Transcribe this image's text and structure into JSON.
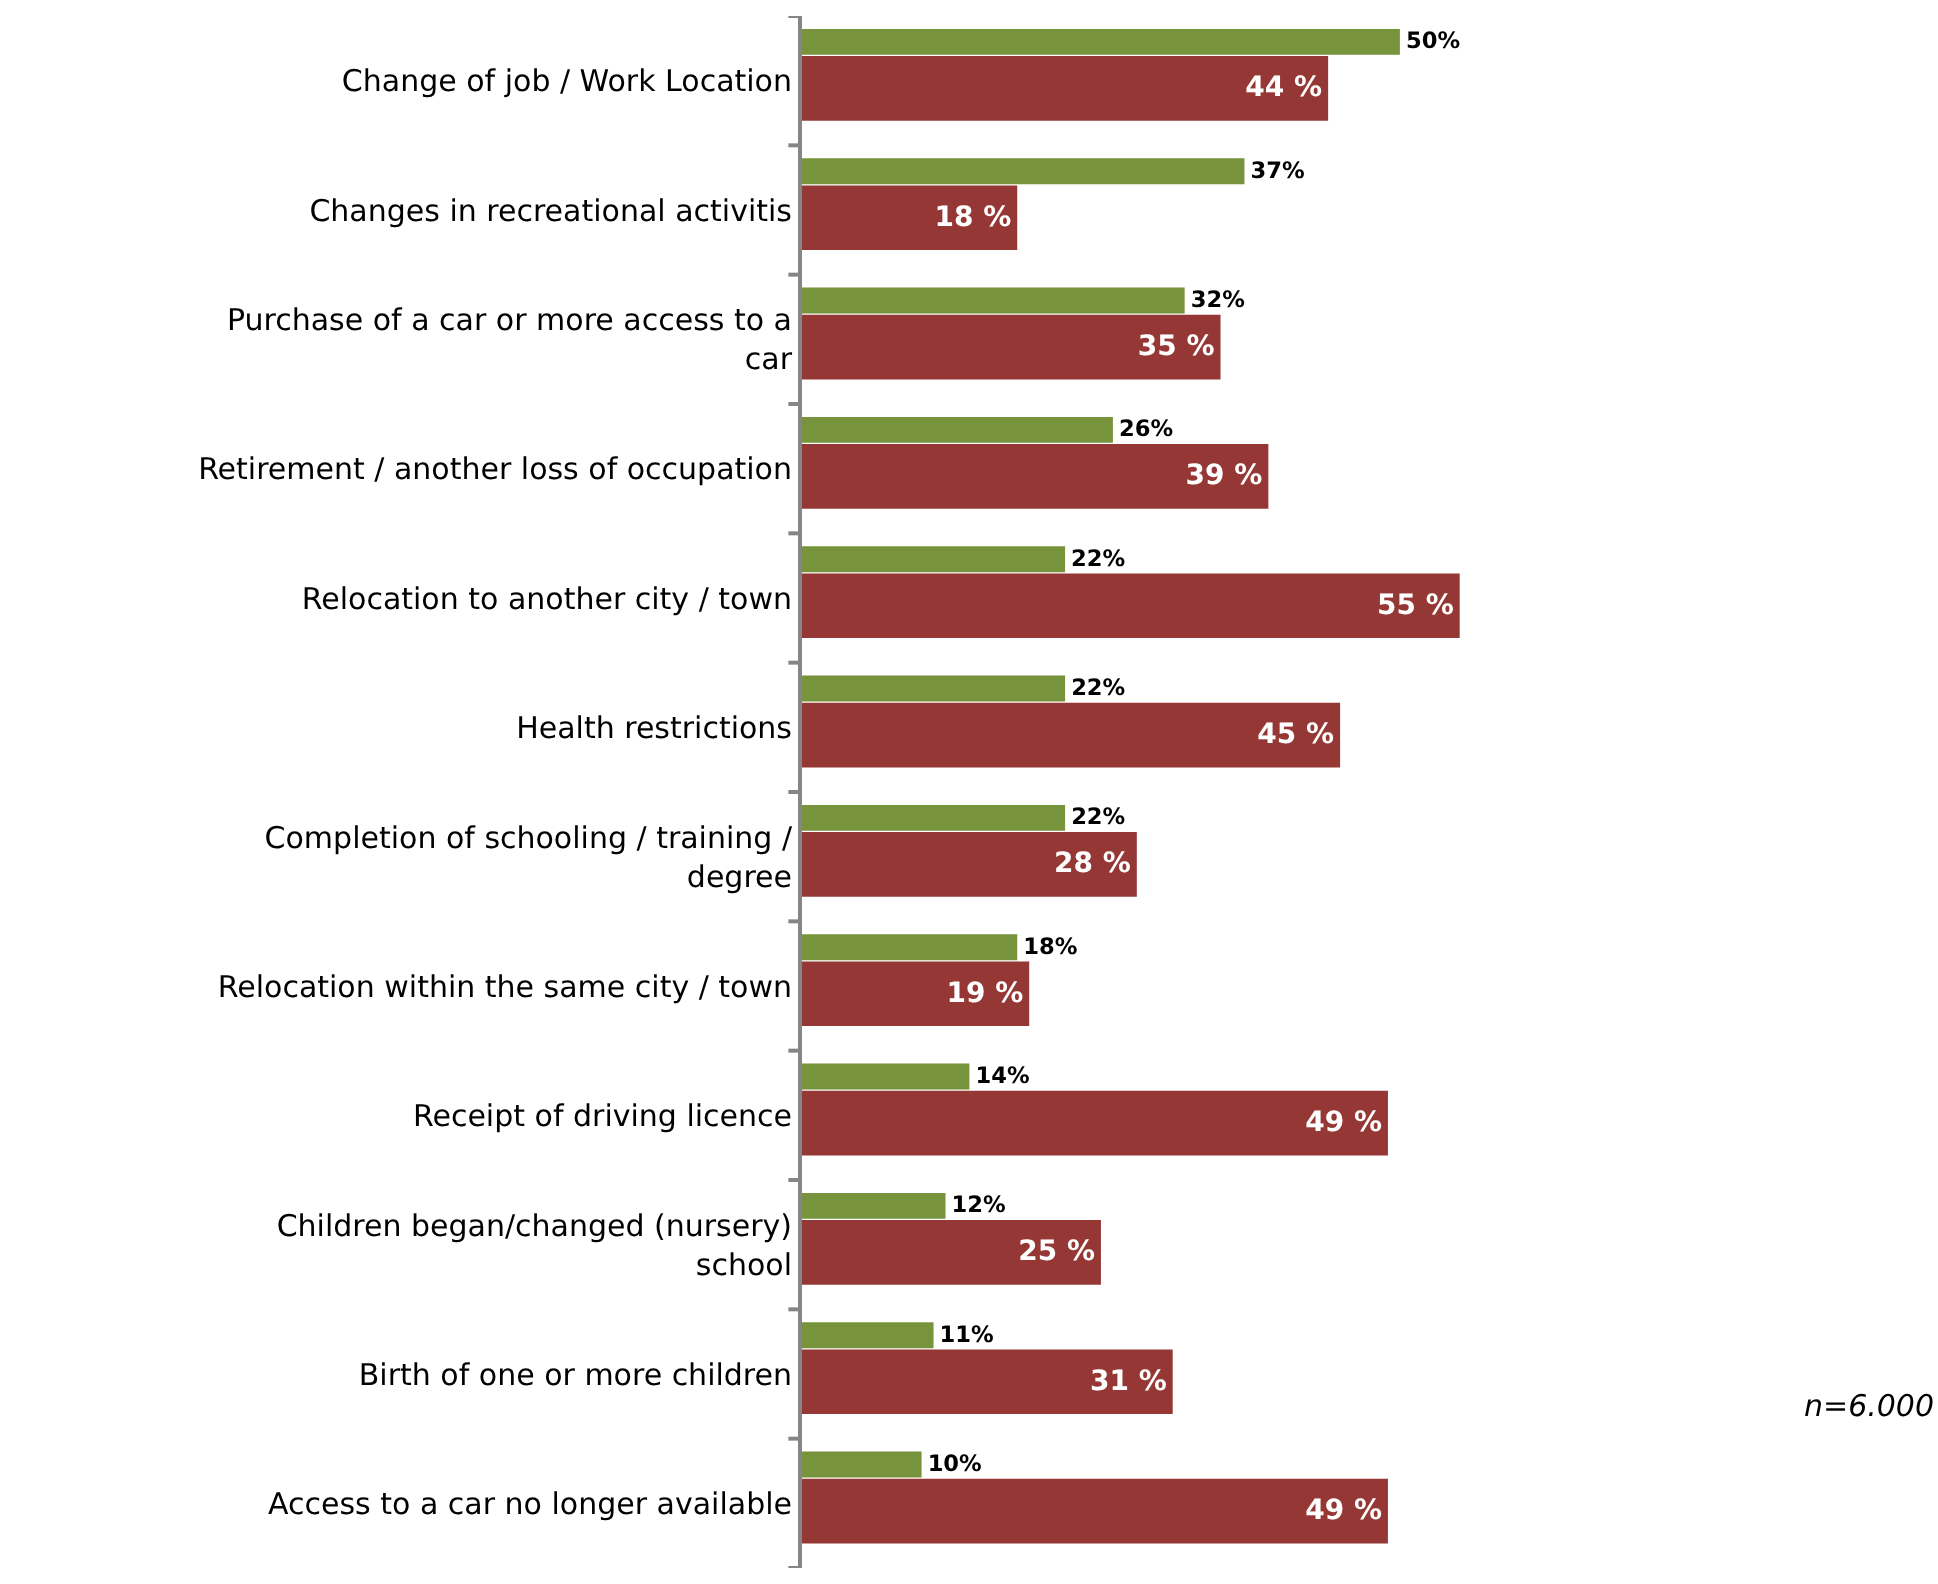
{
  "chart_data": {
    "type": "bar",
    "orientation": "horizontal",
    "tick_labels": "y",
    "xlim": [
      0,
      95
    ],
    "categories": [
      "Change of job / Work Location",
      "Changes in recreational activitis",
      "Purchase of a car or more access to a\ncar",
      "Retirement / another loss of occupation",
      "Relocation to another city / town",
      "Health restrictions",
      "Completion of schooling / training /\ndegree",
      "Relocation within the same city / town",
      "Receipt of driving licence",
      "Children began/changed (nursery)\nschool",
      "Birth of one or more children",
      "Access to a car no longer available"
    ],
    "series": [
      {
        "color": "#77933c",
        "values": [
          50,
          37,
          32,
          26,
          22,
          22,
          22,
          18,
          14,
          12,
          11,
          10
        ],
        "value_labels": [
          "50%",
          "37%",
          "32%",
          "26%",
          "22%",
          "22%",
          "22%",
          "18%",
          "14%",
          "12%",
          "11%",
          "10%"
        ]
      },
      {
        "color": "#953735",
        "values": [
          44,
          18,
          35,
          39,
          55,
          45,
          28,
          19,
          49,
          25,
          31,
          49
        ],
        "value_labels": [
          "44 %",
          "18 %",
          "35 %",
          "39 %",
          "55 %",
          "45 %",
          "28 %",
          "19 %",
          "49 %",
          "25 %",
          "31 %",
          "49 %"
        ]
      }
    ],
    "annotations": [
      "n=6.000"
    ]
  }
}
